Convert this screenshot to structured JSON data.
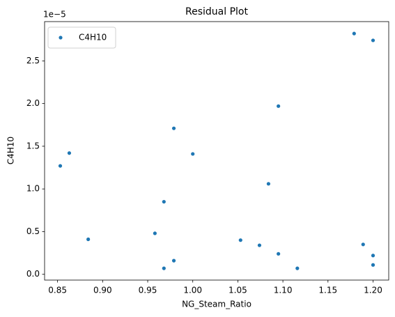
{
  "chart_data": {
    "type": "scatter",
    "title": "Residual Plot",
    "x_label": "NG_Steam_Ratio",
    "y_label": "C4H10",
    "y_offset_label": "1e−5",
    "x": [
      0.853,
      0.863,
      0.884,
      0.958,
      0.968,
      0.968,
      0.979,
      0.979,
      1.0,
      1.053,
      1.074,
      1.084,
      1.095,
      1.095,
      1.116,
      1.179,
      1.189,
      1.2,
      1.2,
      1.2
    ],
    "series": [
      {
        "name": "C4H10",
        "color": "#1f77b4",
        "values": [
          1.27,
          1.42,
          0.41,
          0.48,
          0.85,
          0.07,
          1.71,
          0.16,
          1.41,
          0.4,
          0.34,
          1.06,
          1.97,
          0.24,
          0.07,
          2.82,
          0.35,
          2.74,
          0.22,
          0.11
        ]
      }
    ],
    "xlim": [
      0.8356,
      1.2174
    ],
    "xticks": [
      0.85,
      {
        "value": 0.9,
        "label": "0.90"
      },
      0.95,
      {
        "value": 1.0,
        "label": "1.00"
      },
      1.05,
      {
        "value": 1.1,
        "label": "1.10"
      },
      1.15,
      {
        "value": 1.2,
        "label": "1.20"
      }
    ],
    "ylim": [
      -0.0675,
      2.96
    ],
    "yticks": [
      {
        "value": 0,
        "label": "0.0"
      },
      0.5,
      {
        "value": 1,
        "label": "1.0"
      },
      1.5,
      {
        "value": 2,
        "label": "2.0"
      },
      2.5
    ],
    "grid": false,
    "legend_position": "upper-left"
  }
}
